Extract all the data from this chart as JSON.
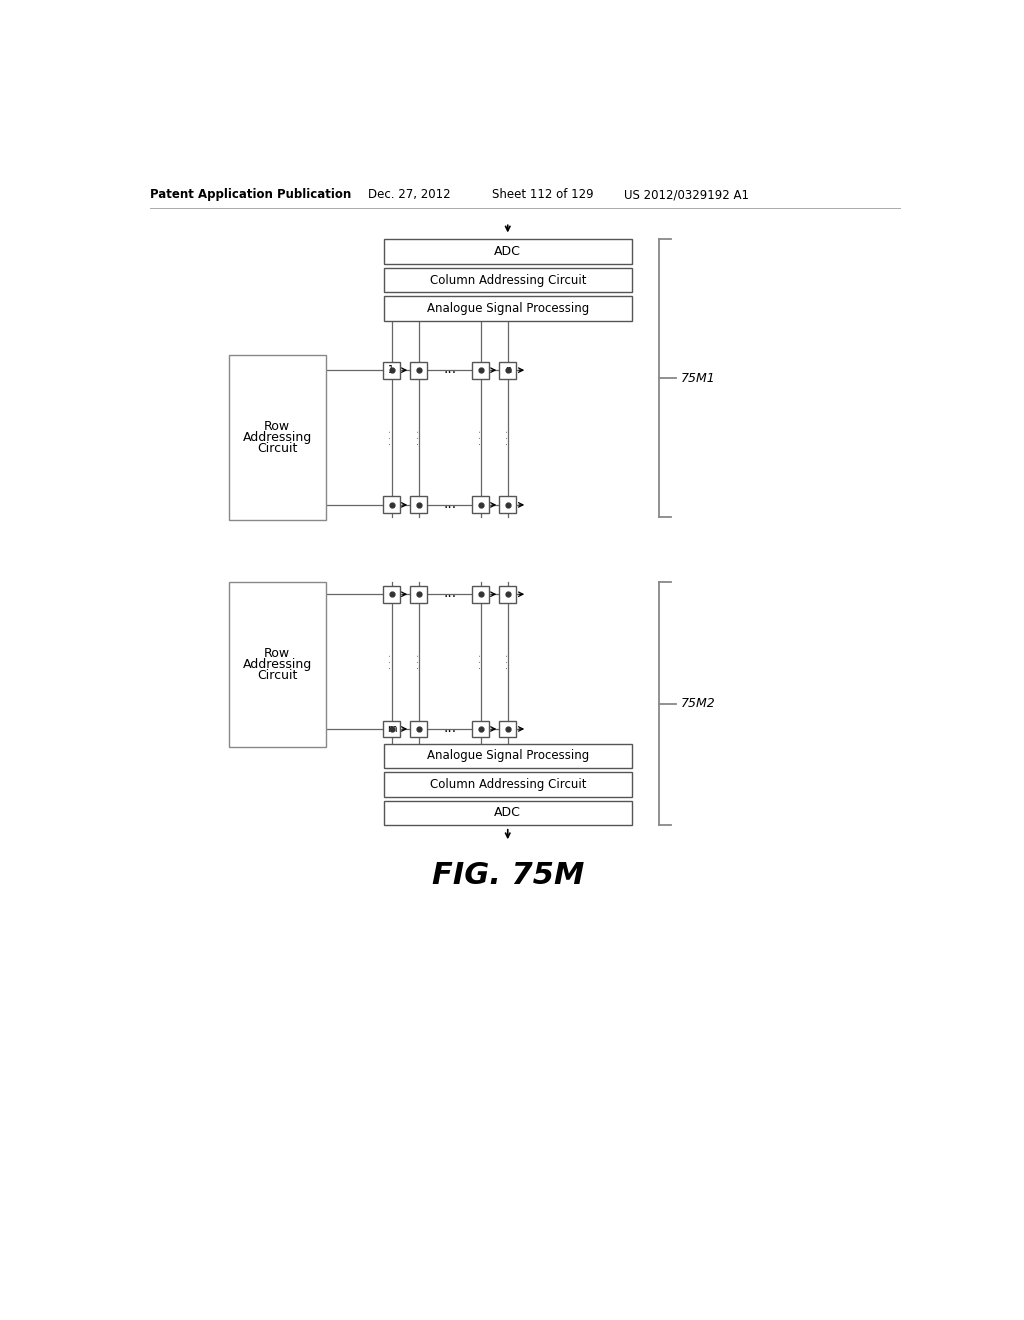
{
  "header_left": "Patent Application Publication",
  "header_date": "Dec. 27, 2012",
  "header_sheet": "Sheet 112 of 129",
  "header_patent": "US 2012/0329192 A1",
  "figure_label": "FIG. 75M",
  "label_75M1": "75M1",
  "label_75M2": "75M2",
  "bg_color": "#ffffff",
  "line_color": "#000000",
  "gray_color": "#888888"
}
